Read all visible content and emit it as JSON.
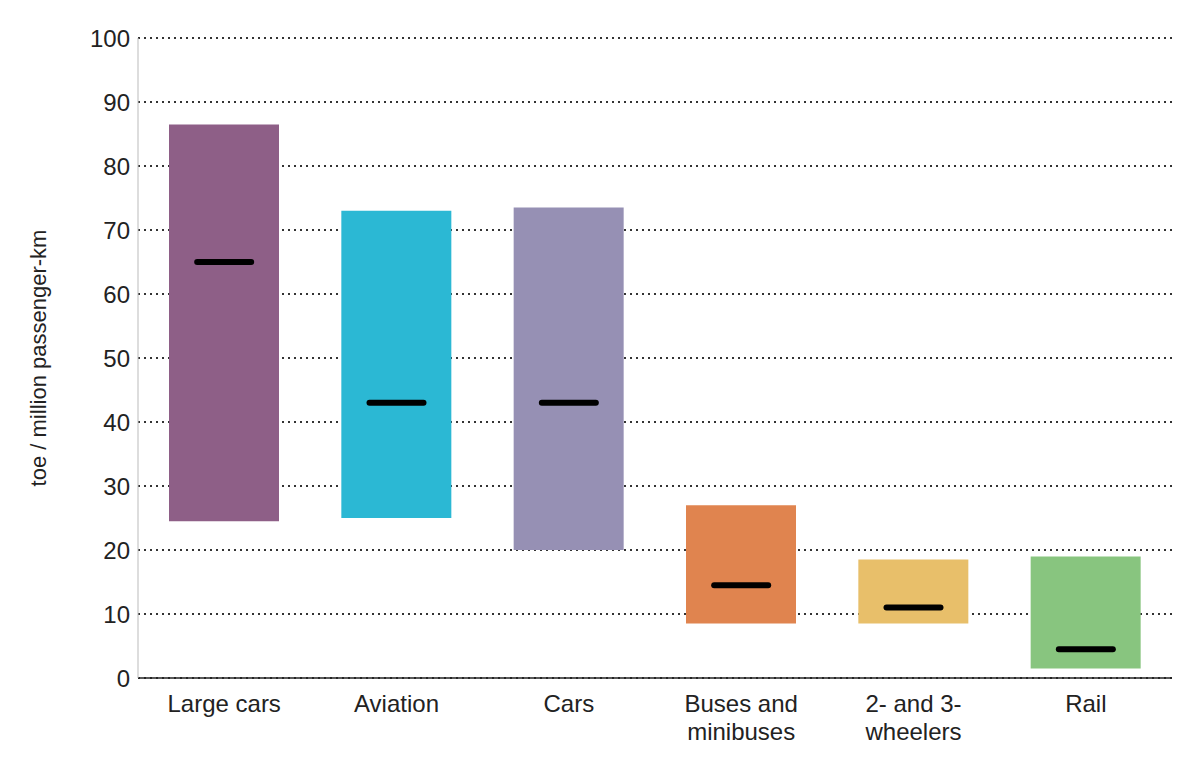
{
  "chart_data": {
    "type": "range_bar",
    "categories": [
      "Large cars",
      "Aviation",
      "Cars",
      "Buses and minibuses",
      "2- and 3-wheelers",
      "Rail"
    ],
    "low": [
      24.5,
      25,
      20,
      8.5,
      8.5,
      1.5
    ],
    "high": [
      86.5,
      73,
      73.5,
      27,
      18.5,
      19
    ],
    "median": [
      65,
      43,
      43,
      14.5,
      11,
      4.5
    ],
    "colors": [
      "#8e5f87",
      "#2bb8d4",
      "#9690b4",
      "#e0844f",
      "#e8bf6a",
      "#88c57f"
    ],
    "ylabel": "toe / million passenger-km",
    "ylim": [
      0,
      100
    ],
    "yticks": [
      0,
      10,
      20,
      30,
      40,
      50,
      60,
      70,
      80,
      90,
      100
    ],
    "grid": true
  }
}
